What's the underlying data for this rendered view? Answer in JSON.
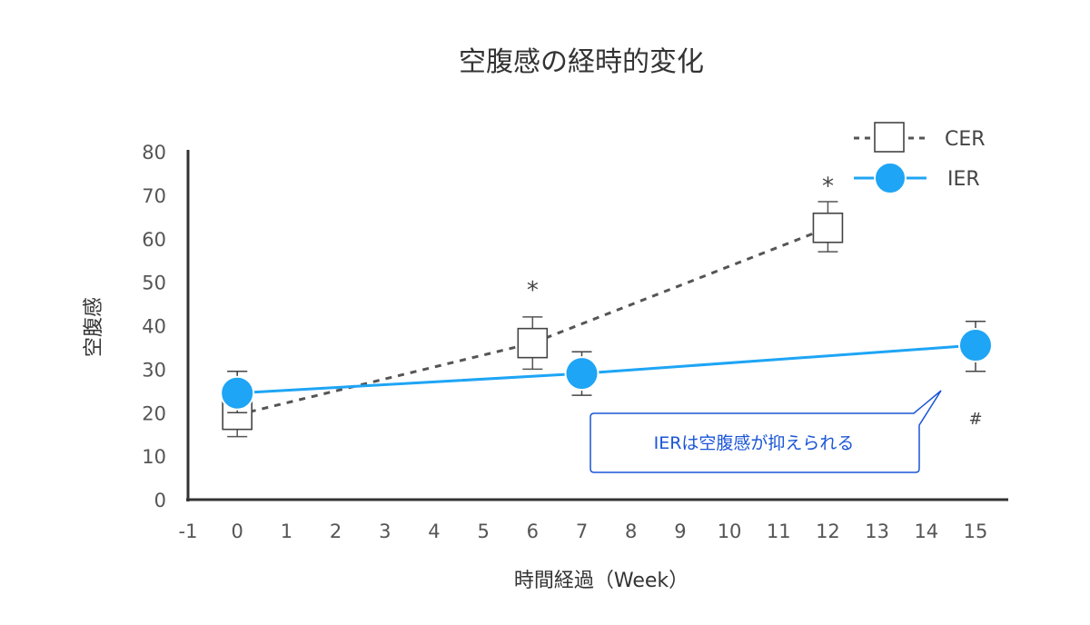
{
  "chart_data": {
    "type": "line",
    "title": "空腹感の経時的変化",
    "xlabel": "時間経過（Week）",
    "ylabel": "空腹感",
    "xlim": [
      -1,
      15
    ],
    "ylim": [
      0,
      80
    ],
    "x_ticks": [
      "-1",
      "0",
      "1",
      "2",
      "3",
      "4",
      "5",
      "6",
      "7",
      "8",
      "9",
      "10",
      "11",
      "12",
      "13",
      "14",
      "15"
    ],
    "y_ticks": [
      "0",
      "10",
      "20",
      "30",
      "40",
      "50",
      "60",
      "70",
      "80"
    ],
    "grid": false,
    "legend_position": "top-right",
    "series": [
      {
        "name": "CER",
        "style": "dashed",
        "marker": "square-open",
        "color": "#555555",
        "points": [
          {
            "x": 0,
            "y": 19.5,
            "err_low": 14.5,
            "err_high": 29.5
          },
          {
            "x": 6,
            "y": 36,
            "err_low": 30,
            "err_high": 42
          },
          {
            "x": 12,
            "y": 62.5,
            "err_low": 57,
            "err_high": 68.5
          }
        ]
      },
      {
        "name": "IER",
        "style": "solid",
        "marker": "circle-filled",
        "color": "#1ea5f5",
        "points": [
          {
            "x": 0,
            "y": 24.5,
            "err_low": 20,
            "err_high": 29.5
          },
          {
            "x": 7,
            "y": 29,
            "err_low": 24,
            "err_high": 34
          },
          {
            "x": 15,
            "y": 35.5,
            "err_low": 29.5,
            "err_high": 41
          }
        ]
      }
    ],
    "markers": [
      {
        "text": "*",
        "x": 6,
        "y": 48
      },
      {
        "text": "*",
        "x": 12,
        "y": 72
      },
      {
        "text": "#",
        "x": 15,
        "y": 19
      }
    ],
    "annotation": {
      "text": "IERは空腹感が抑えられる",
      "pointer_to": {
        "x": 14.2,
        "y": 25
      }
    }
  }
}
